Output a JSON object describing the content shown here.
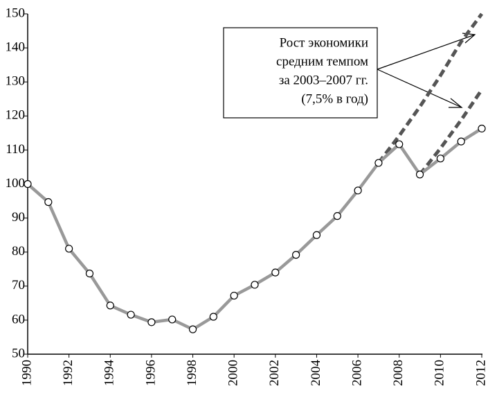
{
  "chart_data": {
    "type": "line",
    "xlim": [
      1990,
      2012
    ],
    "xticks": [
      1990,
      1992,
      1994,
      1996,
      1998,
      2000,
      2002,
      2004,
      2006,
      2008,
      2010,
      2012
    ],
    "ylim": [
      50,
      150
    ],
    "yticks": [
      50,
      60,
      70,
      80,
      90,
      100,
      110,
      120,
      130,
      140,
      150
    ],
    "series": [
      {
        "color": "#555555",
        "style": "dashed",
        "markers": false,
        "x": [
          2007,
          2008,
          2009,
          2010,
          2011,
          2012
        ],
        "values": [
          106.2,
          114.2,
          122.7,
          131.9,
          141.8,
          150
        ]
      },
      {
        "color": "#555555",
        "style": "dashed",
        "markers": false,
        "x": [
          2009,
          2010,
          2011,
          2012
        ],
        "values": [
          102.8,
          110.5,
          118.8,
          127.7
        ]
      },
      {
        "color": "#999999",
        "style": "solid",
        "markers": true,
        "x": [
          1990,
          1991,
          1992,
          1993,
          1994,
          1995,
          1996,
          1997,
          1998,
          1999,
          2000,
          2001,
          2002,
          2003,
          2004,
          2005,
          2006,
          2007,
          2008,
          2009,
          2010,
          2011,
          2012
        ],
        "values": [
          100,
          94.7,
          81,
          73.7,
          64.3,
          61.6,
          59.4,
          60.2,
          57.3,
          61,
          67.2,
          70.4,
          74,
          79.2,
          85,
          90.6,
          98.1,
          106.2,
          111.7,
          102.8,
          107.5,
          112.5,
          116.3
        ]
      }
    ],
    "annotation": [
      "Рост экономики",
      "средним темпом",
      "за 2003–2007 гг.",
      "(7,5% в год)"
    ]
  }
}
